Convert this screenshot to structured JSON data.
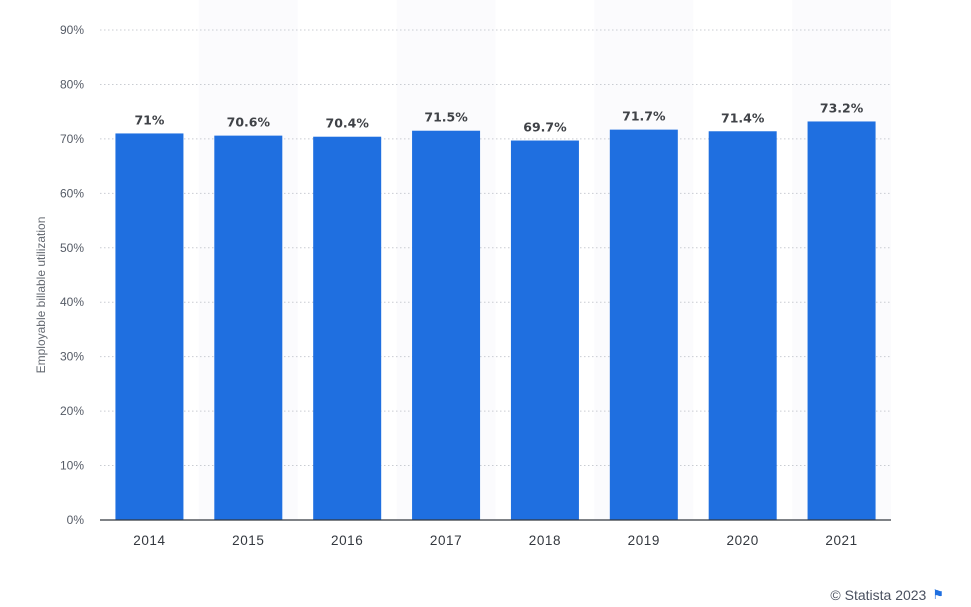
{
  "chart_data": {
    "type": "bar",
    "categories": [
      "2014",
      "2015",
      "2016",
      "2017",
      "2018",
      "2019",
      "2020",
      "2021"
    ],
    "values": [
      71,
      70.6,
      70.4,
      71.5,
      69.7,
      71.7,
      71.4,
      73.2
    ],
    "value_labels": [
      "71%",
      "70.6%",
      "70.4%",
      "71.5%",
      "69.7%",
      "71.7%",
      "71.4%",
      "73.2%"
    ],
    "ylabel": "Employable billable utilization",
    "xlabel": "",
    "ylim": [
      0,
      90
    ],
    "yticks": [
      "0%",
      "10%",
      "20%",
      "30%",
      "40%",
      "50%",
      "60%",
      "70%",
      "80%",
      "90%"
    ],
    "grid": true,
    "bar_color": "#1f6fe0"
  },
  "footer": {
    "credit": "© Statista 2023",
    "flag_icon": "flag-icon"
  }
}
